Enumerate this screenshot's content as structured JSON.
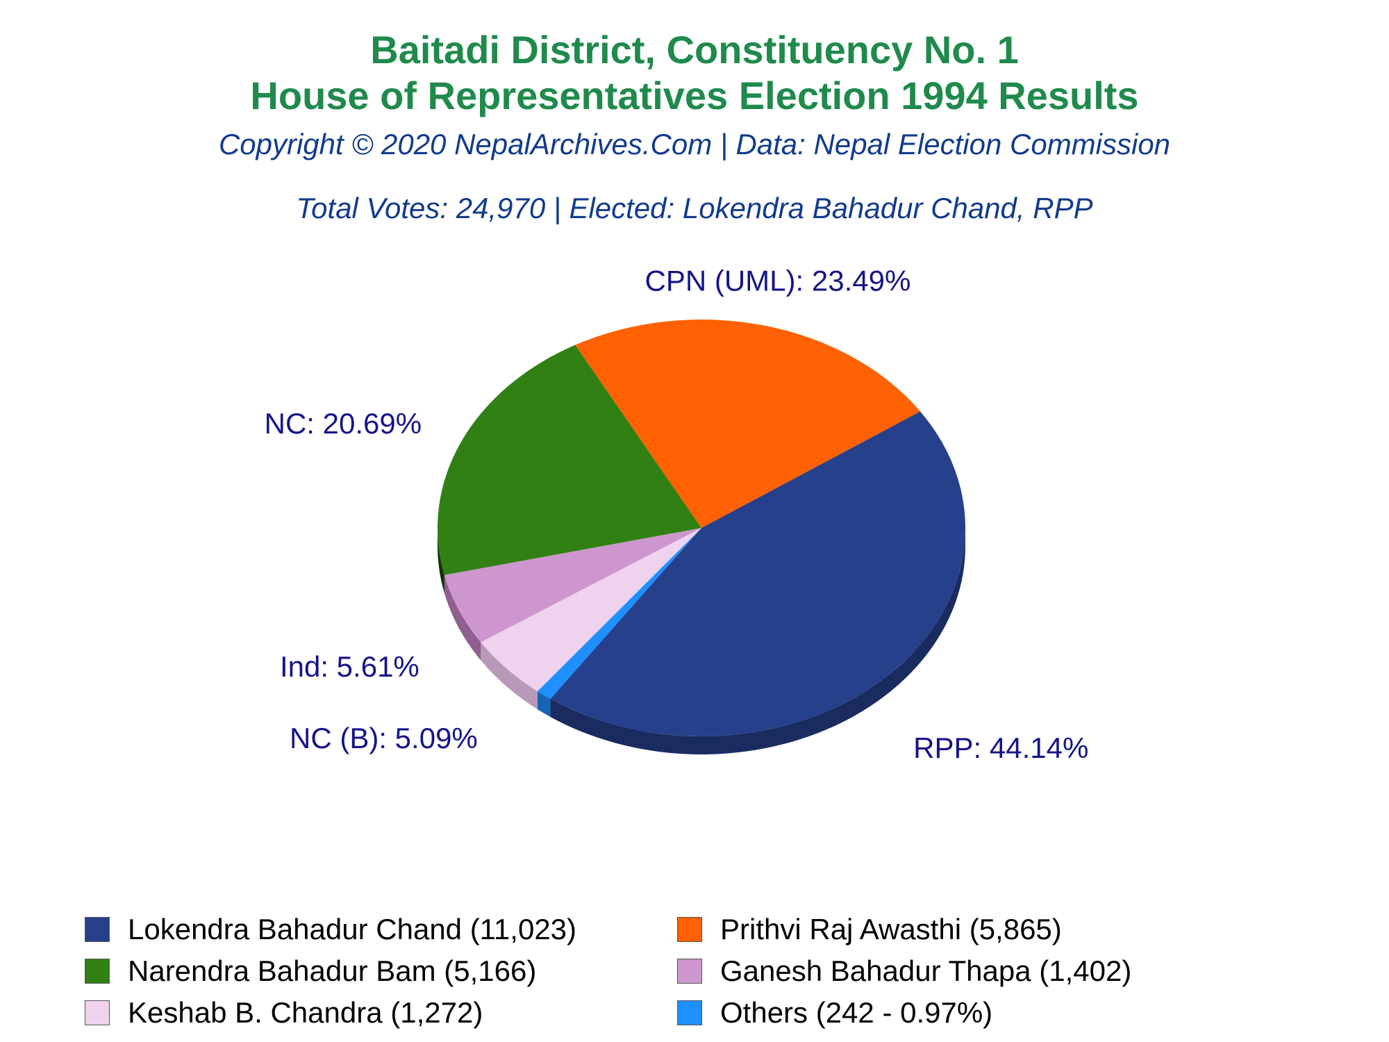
{
  "header": {
    "title_line1": "Baitadi District, Constituency No. 1",
    "title_line2": "House of Representatives Election 1994 Results",
    "copyright": "Copyright © 2020 NepalArchives.Com | Data: Nepal Election Commission",
    "summary": "Total Votes: 24,970 | Elected: Lokendra Bahadur Chand, RPP"
  },
  "chart_data": {
    "type": "pie",
    "title": "Baitadi District, Constituency No. 1 House of Representatives Election 1994 Results",
    "slices": [
      {
        "label": "RPP: 44.14%",
        "party": "RPP",
        "value": 44.14,
        "color": "#27408b",
        "side": "#1a2b60",
        "legend": "Lokendra Bahadur Chand (11,023)",
        "votes": 11023
      },
      {
        "label": "",
        "party": "Others",
        "value": 0.97,
        "color": "#1e90ff",
        "side": "#1466b4",
        "legend": "Others (242 - 0.97%)",
        "votes": 242
      },
      {
        "label": "NC (B): 5.09%",
        "party": "NC (B)",
        "value": 5.09,
        "color": "#eed2ee",
        "side": "#b89ab8",
        "legend": "Keshab B. Chandra (1,272)",
        "votes": 1272
      },
      {
        "label": "Ind: 5.61%",
        "party": "Ind",
        "value": 5.61,
        "color": "#cd96cd",
        "side": "#8f5f8f",
        "legend": "Ganesh Bahadur Thapa (1,402)",
        "votes": 1402
      },
      {
        "label": "NC: 20.69%",
        "party": "NC",
        "value": 20.69,
        "color": "#308014",
        "side": "#0f3305",
        "legend": "Narendra Bahadur Bam (5,166)",
        "votes": 5166
      },
      {
        "label": "CPN (UML): 23.49%",
        "party": "CPN (UML)",
        "value": 23.49,
        "color": "#ff6103",
        "side": "#a80000",
        "legend": "Prithvi Raj Awasthi (5,865)",
        "votes": 5865
      }
    ],
    "legend_order": [
      0,
      5,
      4,
      3,
      2,
      1
    ],
    "legend_placement": "bottom"
  }
}
